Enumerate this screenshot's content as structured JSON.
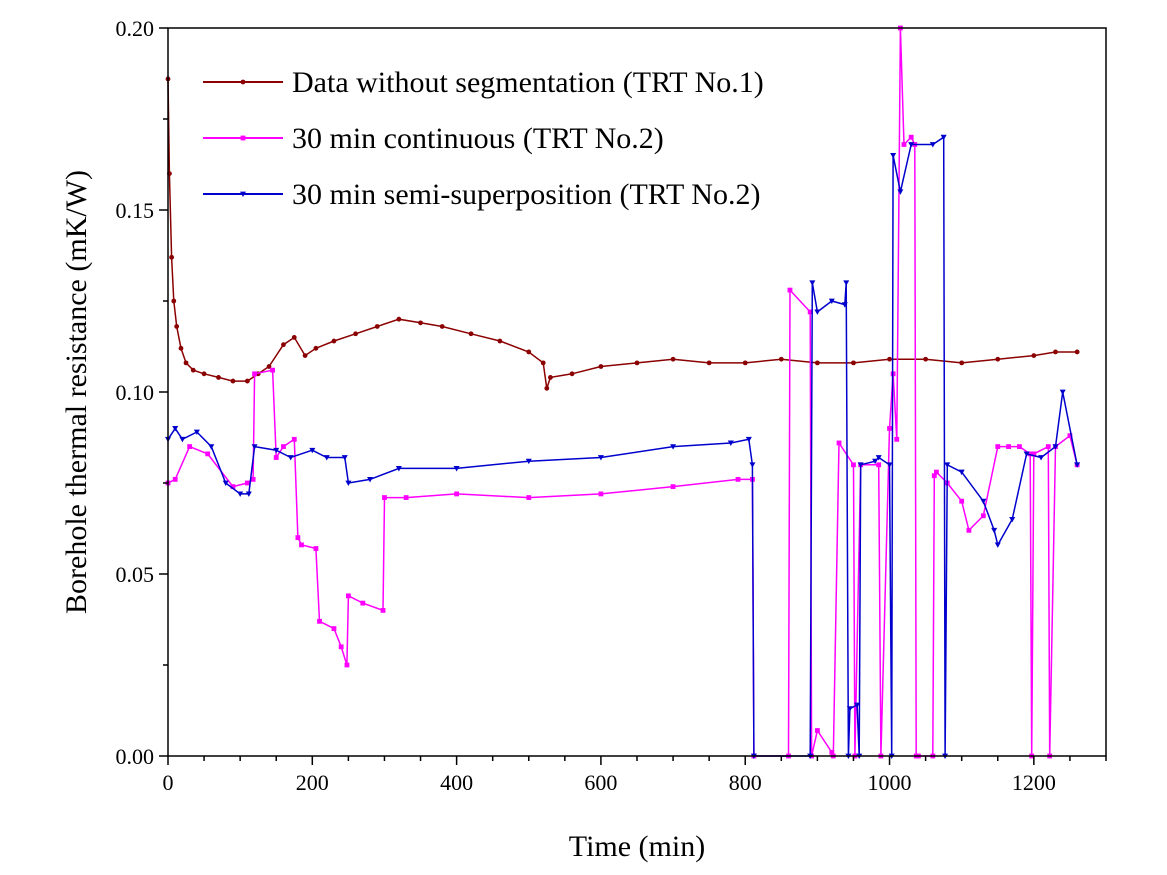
{
  "chart_data": {
    "type": "line",
    "title": "",
    "xlabel": "Time (min)",
    "ylabel": "Borehole thermal resistance (mK/W)",
    "xlim": [
      0,
      1300
    ],
    "ylim": [
      0,
      0.2
    ],
    "xticks": [
      0,
      200,
      400,
      600,
      800,
      1000,
      1200
    ],
    "yticks": [
      0.0,
      0.05,
      0.1,
      0.15,
      0.2
    ],
    "xtick_labels": [
      "0",
      "200",
      "400",
      "600",
      "800",
      "1000",
      "1200"
    ],
    "ytick_labels": [
      "0.00",
      "0.05",
      "0.10",
      "0.15",
      "0.20"
    ],
    "grid": false,
    "legend_position": "top-left",
    "series": [
      {
        "name": "Data without segmentation (TRT No.1)",
        "color": "#8b0000",
        "marker": "circle",
        "x": [
          0,
          2,
          5,
          8,
          12,
          18,
          25,
          35,
          50,
          70,
          90,
          110,
          125,
          140,
          160,
          175,
          190,
          205,
          230,
          260,
          290,
          320,
          350,
          380,
          420,
          460,
          500,
          520,
          525,
          530,
          560,
          600,
          650,
          700,
          750,
          800,
          850,
          900,
          950,
          1000,
          1050,
          1100,
          1150,
          1200,
          1230,
          1260
        ],
        "y": [
          0.186,
          0.16,
          0.137,
          0.125,
          0.118,
          0.112,
          0.108,
          0.106,
          0.105,
          0.104,
          0.103,
          0.103,
          0.105,
          0.107,
          0.113,
          0.115,
          0.11,
          0.112,
          0.114,
          0.116,
          0.118,
          0.12,
          0.119,
          0.118,
          0.116,
          0.114,
          0.111,
          0.108,
          0.101,
          0.104,
          0.105,
          0.107,
          0.108,
          0.109,
          0.108,
          0.108,
          0.109,
          0.108,
          0.108,
          0.109,
          0.109,
          0.108,
          0.109,
          0.11,
          0.111,
          0.111
        ]
      },
      {
        "name": "30 min continuous (TRT No.2)",
        "color": "#ff00ff",
        "marker": "square",
        "x": [
          0,
          10,
          30,
          55,
          90,
          110,
          118,
          120,
          145,
          150,
          160,
          175,
          180,
          185,
          205,
          210,
          230,
          240,
          248,
          250,
          270,
          298,
          300,
          330,
          400,
          500,
          600,
          700,
          790,
          810,
          812,
          860,
          862,
          890,
          892,
          900,
          920,
          922,
          930,
          950,
          952,
          960,
          985,
          988,
          1000,
          1005,
          1010,
          1015,
          1020,
          1030,
          1035,
          1037,
          1040,
          1060,
          1062,
          1065,
          1080,
          1100,
          1110,
          1130,
          1150,
          1165,
          1180,
          1195,
          1197,
          1200,
          1220,
          1222,
          1230,
          1250,
          1260
        ],
        "y": [
          0.075,
          0.076,
          0.085,
          0.083,
          0.074,
          0.075,
          0.076,
          0.105,
          0.106,
          0.082,
          0.085,
          0.087,
          0.06,
          0.058,
          0.057,
          0.037,
          0.035,
          0.03,
          0.025,
          0.044,
          0.042,
          0.04,
          0.071,
          0.071,
          0.072,
          0.071,
          0.072,
          0.074,
          0.076,
          0.076,
          0.0,
          0.0,
          0.128,
          0.122,
          0.0,
          0.007,
          0.001,
          0.0,
          0.086,
          0.08,
          0.0,
          0.08,
          0.08,
          0.0,
          0.09,
          0.105,
          0.087,
          0.2,
          0.168,
          0.17,
          0.168,
          0.0,
          0.0,
          0.0,
          0.077,
          0.078,
          0.075,
          0.07,
          0.062,
          0.066,
          0.085,
          0.085,
          0.085,
          0.083,
          0.0,
          0.083,
          0.085,
          0.0,
          0.085,
          0.088,
          0.08
        ]
      },
      {
        "name": "30 min semi-superposition (TRT No.2)",
        "color": "#0000cd",
        "marker": "triangle-down",
        "x": [
          0,
          10,
          20,
          40,
          60,
          80,
          100,
          112,
          120,
          150,
          170,
          200,
          220,
          245,
          250,
          280,
          320,
          400,
          500,
          600,
          700,
          780,
          805,
          810,
          812,
          890,
          893,
          900,
          920,
          938,
          940,
          943,
          945,
          955,
          958,
          960,
          980,
          985,
          1000,
          1003,
          1005,
          1015,
          1030,
          1060,
          1075,
          1077,
          1080,
          1100,
          1130,
          1145,
          1150,
          1170,
          1190,
          1210,
          1230,
          1240,
          1260
        ],
        "y": [
          0.087,
          0.09,
          0.087,
          0.089,
          0.085,
          0.075,
          0.072,
          0.072,
          0.085,
          0.084,
          0.082,
          0.084,
          0.082,
          0.082,
          0.075,
          0.076,
          0.079,
          0.079,
          0.081,
          0.082,
          0.085,
          0.086,
          0.087,
          0.08,
          0.0,
          0.0,
          0.13,
          0.122,
          0.125,
          0.124,
          0.13,
          0.0,
          0.013,
          0.014,
          0.0,
          0.08,
          0.081,
          0.082,
          0.08,
          0.0,
          0.165,
          0.155,
          0.168,
          0.168,
          0.17,
          0.0,
          0.08,
          0.078,
          0.07,
          0.062,
          0.058,
          0.065,
          0.083,
          0.082,
          0.085,
          0.1,
          0.08
        ]
      }
    ]
  }
}
